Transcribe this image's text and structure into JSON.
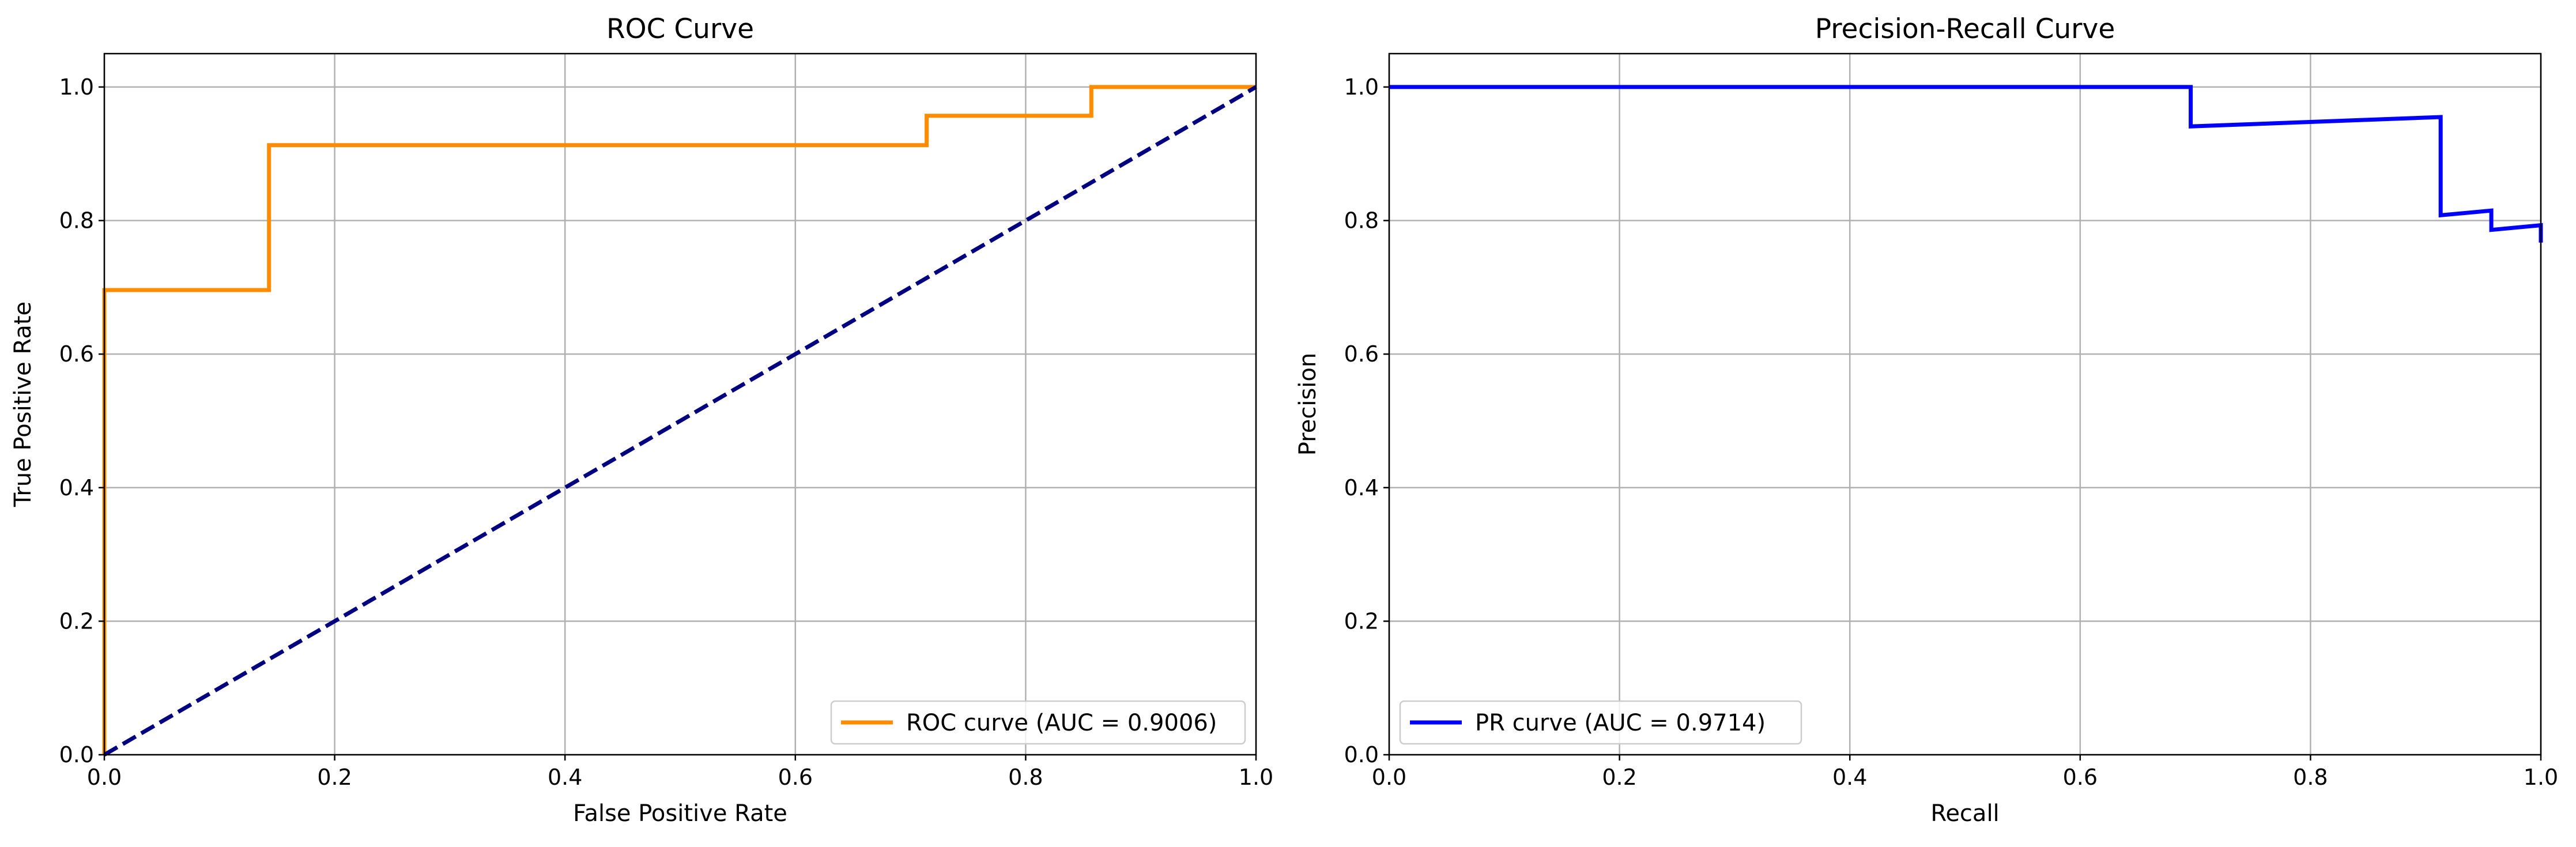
{
  "chart_data": [
    {
      "type": "line",
      "title": "ROC Curve",
      "xlabel": "False Positive Rate",
      "ylabel": "True Positive Rate",
      "xlim": [
        0,
        1.0
      ],
      "ylim": [
        0,
        1.05
      ],
      "xticks": [
        "0.0",
        "0.2",
        "0.4",
        "0.6",
        "0.8",
        "1.0"
      ],
      "yticks": [
        "0.0",
        "0.2",
        "0.4",
        "0.6",
        "0.8",
        "1.0"
      ],
      "grid": true,
      "legend_position": "lower-right",
      "series": [
        {
          "name": "ROC curve (AUC = 0.9006)",
          "color": "#ff8c00",
          "style": "solid",
          "x": [
            0.0,
            0.0,
            0.0,
            0.143,
            0.143,
            0.714,
            0.714,
            0.857,
            0.857,
            1.0
          ],
          "y": [
            0.0,
            0.043,
            0.696,
            0.696,
            0.913,
            0.913,
            0.957,
            0.957,
            1.0,
            1.0
          ]
        },
        {
          "name": "",
          "color": "#000080",
          "style": "dashed",
          "x": [
            0,
            1
          ],
          "y": [
            0,
            1
          ]
        }
      ]
    },
    {
      "type": "line",
      "title": "Precision-Recall Curve",
      "xlabel": "Recall",
      "ylabel": "Precision",
      "xlim": [
        0,
        1.0
      ],
      "ylim": [
        0,
        1.05
      ],
      "xticks": [
        "0.0",
        "0.2",
        "0.4",
        "0.6",
        "0.8",
        "1.0"
      ],
      "yticks": [
        "0.0",
        "0.2",
        "0.4",
        "0.6",
        "0.8",
        "1.0"
      ],
      "grid": true,
      "legend_position": "lower-left",
      "series": [
        {
          "name": "PR curve (AUC = 0.9714)",
          "color": "#0000ff",
          "style": "solid",
          "x": [
            0.0,
            0.696,
            0.696,
            0.913,
            0.913,
            0.957,
            0.957,
            1.0,
            1.0
          ],
          "y": [
            1.0,
            1.0,
            0.941,
            0.955,
            0.808,
            0.815,
            0.786,
            0.793,
            0.767
          ]
        }
      ]
    }
  ]
}
